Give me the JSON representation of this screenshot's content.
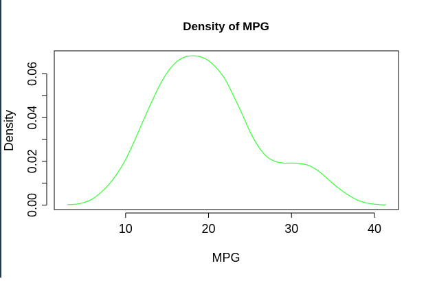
{
  "chart_data": {
    "type": "line",
    "title": "Density of MPG",
    "xlabel": "MPG",
    "ylabel": "Density",
    "xlim": [
      1.4,
      42.9
    ],
    "ylim": [
      -0.00205,
      0.0705
    ],
    "x_ticks": [
      10,
      20,
      30,
      40
    ],
    "y_ticks": [
      0.0,
      0.02,
      0.04,
      0.06
    ],
    "x_tick_labels": [
      "10",
      "20",
      "30",
      "40"
    ],
    "y_tick_labels": [
      "0.00",
      "0.02",
      "0.04",
      "0.06"
    ],
    "grid": false,
    "box": true,
    "series": [
      {
        "color": "#33ff33",
        "x": [
          3.0,
          4.0,
          5.0,
          6.0,
          7.0,
          8.0,
          9.0,
          10.0,
          11.0,
          12.0,
          13.0,
          14.0,
          15.0,
          16.0,
          17.0,
          18.0,
          19.0,
          20.0,
          21.0,
          22.0,
          23.0,
          24.0,
          25.0,
          26.0,
          27.0,
          28.0,
          29.0,
          30.0,
          31.0,
          32.0,
          33.0,
          34.0,
          35.0,
          36.0,
          37.0,
          38.0,
          39.0,
          40.0,
          41.0,
          41.4
        ],
        "y": [
          0.0002,
          0.0004,
          0.0012,
          0.0028,
          0.0057,
          0.0095,
          0.0145,
          0.0208,
          0.0288,
          0.0375,
          0.046,
          0.054,
          0.0605,
          0.065,
          0.0675,
          0.0682,
          0.0678,
          0.066,
          0.0625,
          0.0575,
          0.05,
          0.042,
          0.0335,
          0.0268,
          0.0222,
          0.02,
          0.0192,
          0.0192,
          0.019,
          0.0182,
          0.0162,
          0.0132,
          0.0098,
          0.0068,
          0.0042,
          0.0022,
          0.001,
          0.0004,
          0.0001,
          0.0001
        ]
      }
    ]
  }
}
